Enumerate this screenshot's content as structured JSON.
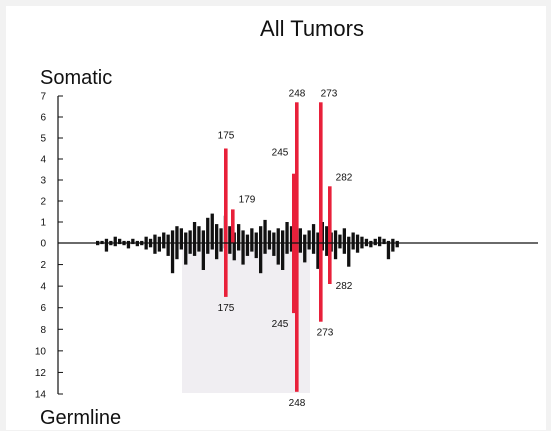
{
  "chart_data": {
    "type": "bar",
    "title": "All Tumors",
    "top_label": "Somatic",
    "bottom_label": "Germline",
    "colors": {
      "hotspot": "#e8203a",
      "other": "#111111",
      "ghost": "#e4e0e8"
    },
    "somatic": {
      "ylim": [
        0,
        7
      ],
      "ticks": [
        0,
        1,
        2,
        3,
        4,
        5,
        6,
        7
      ],
      "hotspots": [
        {
          "codon": "175",
          "value": 4.5
        },
        {
          "codon": "179",
          "value": 1.6
        },
        {
          "codon": "245",
          "value": 3.3
        },
        {
          "codon": "248",
          "value": 6.7
        },
        {
          "codon": "273",
          "value": 6.7
        },
        {
          "codon": "282",
          "value": 2.7
        }
      ],
      "other_values": [
        0.1,
        0.1,
        0.2,
        0.1,
        0.3,
        0.2,
        0.1,
        0.1,
        0.2,
        0.1,
        0.1,
        0.3,
        0.2,
        0.4,
        0.3,
        0.5,
        0.4,
        0.6,
        0.8,
        0.7,
        0.5,
        0.6,
        1.0,
        0.8,
        0.6,
        1.2,
        1.4,
        0.9,
        0.7,
        1.3,
        0.8,
        0.5,
        0.9,
        0.6,
        0.4,
        0.7,
        0.5,
        0.8,
        1.1,
        0.6,
        0.5,
        0.7,
        0.6,
        1.0,
        0.8,
        0.5,
        0.7,
        0.4,
        0.6,
        0.9,
        0.5,
        1.0,
        0.8,
        0.5,
        0.6,
        0.4,
        0.7,
        0.3,
        0.5,
        0.4,
        0.3,
        0.2,
        0.1,
        0.2,
        0.3,
        0.2,
        0.1,
        0.2,
        0.1
      ]
    },
    "germline": {
      "ylim": [
        0,
        14
      ],
      "ticks": [
        2,
        4,
        6,
        8,
        10,
        12,
        14
      ],
      "hotspots": [
        {
          "codon": "175",
          "value": 5
        },
        {
          "codon": "245",
          "value": 6.5
        },
        {
          "codon": "248",
          "value": 13.8
        },
        {
          "codon": "273",
          "value": 7.3
        },
        {
          "codon": "282",
          "value": 3.8
        }
      ],
      "other_values": [
        0.2,
        0.1,
        0.8,
        0.2,
        0.3,
        0.1,
        0.2,
        0.5,
        0.1,
        0.3,
        0.2,
        0.6,
        0.4,
        1.0,
        0.8,
        0.5,
        1.2,
        2.8,
        1.5,
        0.6,
        2.0,
        1.0,
        1.2,
        0.8,
        2.5,
        1.0,
        0.6,
        1.5,
        0.8,
        0.5,
        1.0,
        1.6,
        0.7,
        2.0,
        1.2,
        0.8,
        1.4,
        2.8,
        1.0,
        0.6,
        1.2,
        2.0,
        2.5,
        1.0,
        0.8,
        1.6,
        0.9,
        1.8,
        0.6,
        1.0,
        2.4,
        0.7,
        1.2,
        0.8,
        1.5,
        0.5,
        1.0,
        2.2,
        0.6,
        0.9,
        0.5,
        0.3,
        0.4,
        0.2,
        0.3,
        0.1,
        1.5,
        0.8,
        0.4
      ]
    }
  }
}
